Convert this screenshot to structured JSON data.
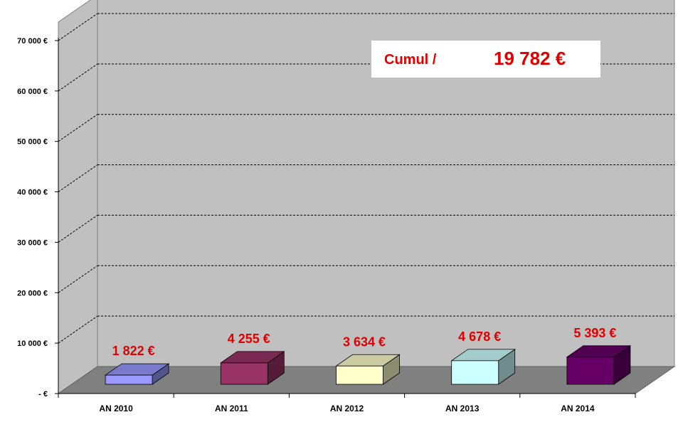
{
  "chart_data": {
    "type": "bar",
    "title": "",
    "xlabel": "",
    "ylabel": "",
    "categories": [
      "AN 2010",
      "AN 2011",
      "AN 2012",
      "AN 2013",
      "AN 2014"
    ],
    "values": [
      1822,
      4255,
      3634,
      4678,
      5393
    ],
    "data_labels": [
      "1 822 €",
      "4 255 €",
      "3 634 €",
      "4 678 €",
      "5 393 €"
    ],
    "colors": [
      "#9999ff",
      "#993366",
      "#ffffcc",
      "#ccffff",
      "#660066"
    ],
    "ylim": [
      0,
      70000
    ],
    "y_ticks": [
      0,
      10000,
      20000,
      30000,
      40000,
      50000,
      60000,
      70000
    ],
    "y_tick_labels": [
      "-   €",
      "10 000 €",
      "20 000 €",
      "30 000 €",
      "40 000 €",
      "50 000 €",
      "60 000 €",
      "70 000 €"
    ],
    "grid": true,
    "style": "3d",
    "wall_color": "#c0c0c0",
    "floor_color": "#808080",
    "label_color": "#e00000"
  },
  "cumul": {
    "label": "Cumul /",
    "value": "19 782 €"
  }
}
